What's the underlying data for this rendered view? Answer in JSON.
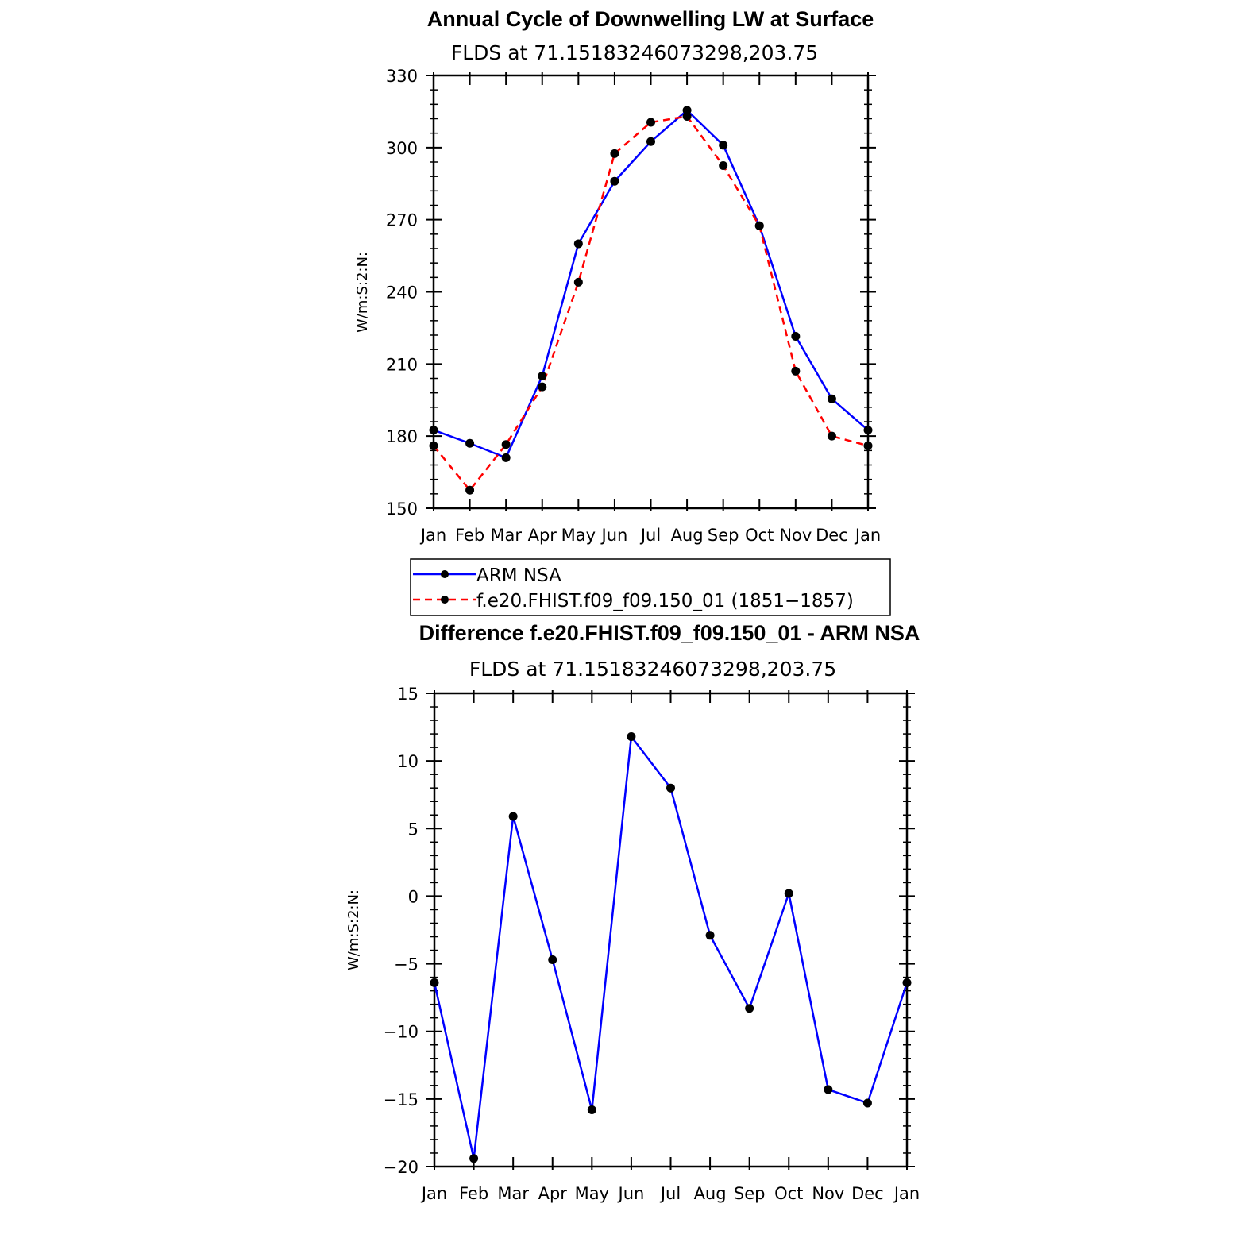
{
  "chart_data": [
    {
      "type": "line",
      "title": "Annual Cycle of Downwelling LW at Surface",
      "subtitle": "FLDS at 71.15183246073298,203.75",
      "ylabel": "W/m:S:2:N:",
      "xlabel": "",
      "categories": [
        "Jan",
        "Feb",
        "Mar",
        "Apr",
        "May",
        "Jun",
        "Jul",
        "Aug",
        "Sep",
        "Oct",
        "Nov",
        "Dec",
        "Jan"
      ],
      "ylim": [
        150,
        330
      ],
      "yticks": [
        150,
        180,
        210,
        240,
        270,
        300,
        330
      ],
      "grid": false,
      "legend_position": "bottom",
      "series": [
        {
          "name": "ARM NSA",
          "color": "#0000ff",
          "dash": "solid",
          "values": [
            182.5,
            177,
            171,
            205,
            260,
            286,
            302.5,
            315.5,
            301,
            267.5,
            221.5,
            195.5,
            182.5
          ]
        },
        {
          "name": "f.e20.FHIST.f09_f09.150_01 (1851−1857)",
          "color": "#ff0000",
          "dash": "dashed",
          "values": [
            176,
            157.5,
            176.5,
            200.5,
            244,
            297.5,
            310.5,
            313,
            292.5,
            267.5,
            207,
            180,
            176
          ]
        }
      ]
    },
    {
      "type": "line",
      "title": "Difference f.e20.FHIST.f09_f09.150_01 - ARM NSA",
      "subtitle": "FLDS at 71.15183246073298,203.75",
      "ylabel": "W/m:S:2:N:",
      "xlabel": "",
      "categories": [
        "Jan",
        "Feb",
        "Mar",
        "Apr",
        "May",
        "Jun",
        "Jul",
        "Aug",
        "Sep",
        "Oct",
        "Nov",
        "Dec",
        "Jan"
      ],
      "ylim": [
        -20,
        15
      ],
      "yticks": [
        -20,
        -15,
        -10,
        -5,
        0,
        5,
        10,
        15
      ],
      "grid": false,
      "series": [
        {
          "color": "#0000ff",
          "dash": "solid",
          "values": [
            -6.4,
            -19.4,
            5.9,
            -4.7,
            -15.8,
            11.8,
            8.0,
            -2.9,
            -8.3,
            0.2,
            -14.3,
            -15.3,
            -6.4
          ]
        }
      ]
    }
  ]
}
